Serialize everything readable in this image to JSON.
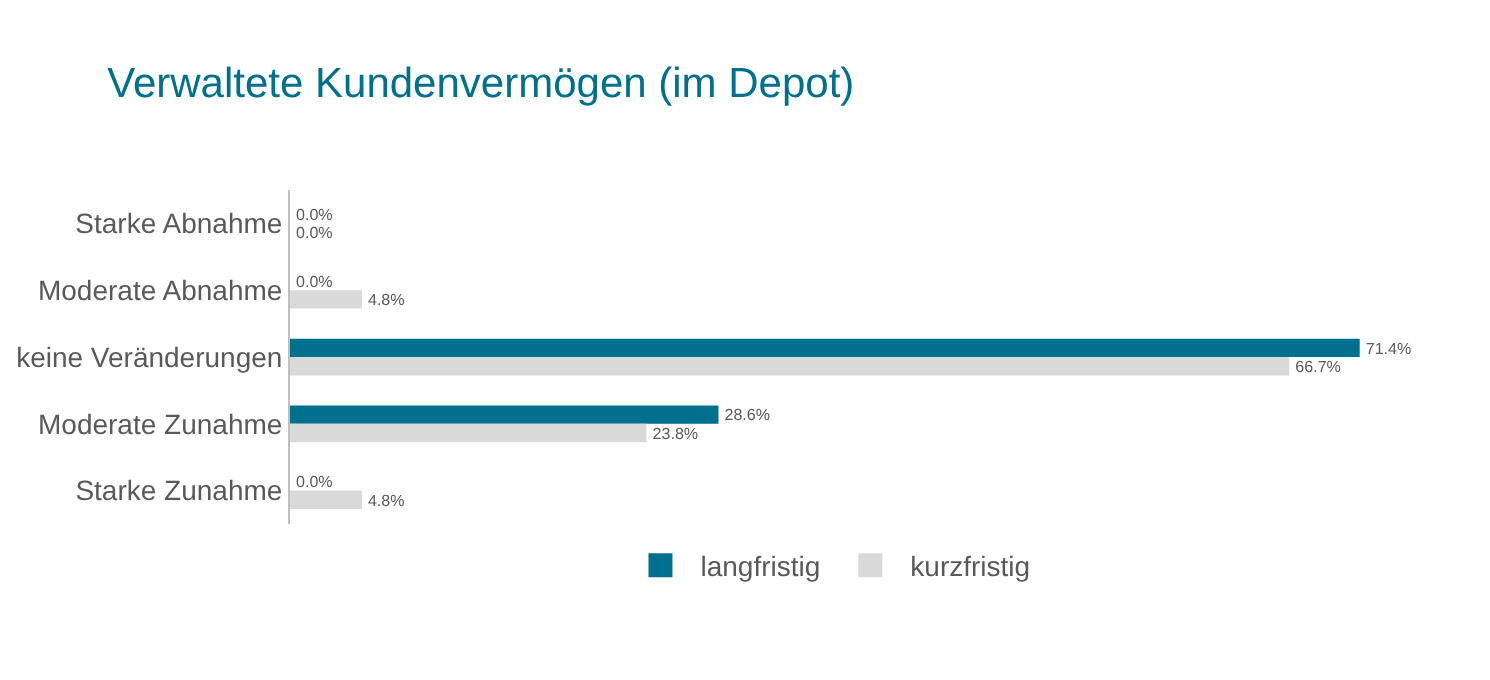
{
  "chart_data": {
    "type": "bar",
    "orientation": "horizontal",
    "title": "Verwaltete Kundenvermögen (im Depot)",
    "categories": [
      "Starke Abnahme",
      "Moderate Abnahme",
      "keine Veränderungen",
      "Moderate Zunahme",
      "Starke Zunahme"
    ],
    "series": [
      {
        "name": "langfristig",
        "color": "#00708f",
        "values": [
          0.0,
          0.0,
          71.4,
          28.6,
          0.0
        ],
        "value_labels": [
          "0.0%",
          "0.0%",
          "71.4%",
          "28.6%",
          "0.0%"
        ]
      },
      {
        "name": "kurzfristig",
        "color": "#d9d9d9",
        "values": [
          0.0,
          4.8,
          66.7,
          23.8,
          4.8
        ],
        "value_labels": [
          "0.0%",
          "4.8%",
          "66.7%",
          "23.8%",
          "4.8%"
        ]
      }
    ],
    "tick_labels": "y",
    "legend": "bottom"
  }
}
